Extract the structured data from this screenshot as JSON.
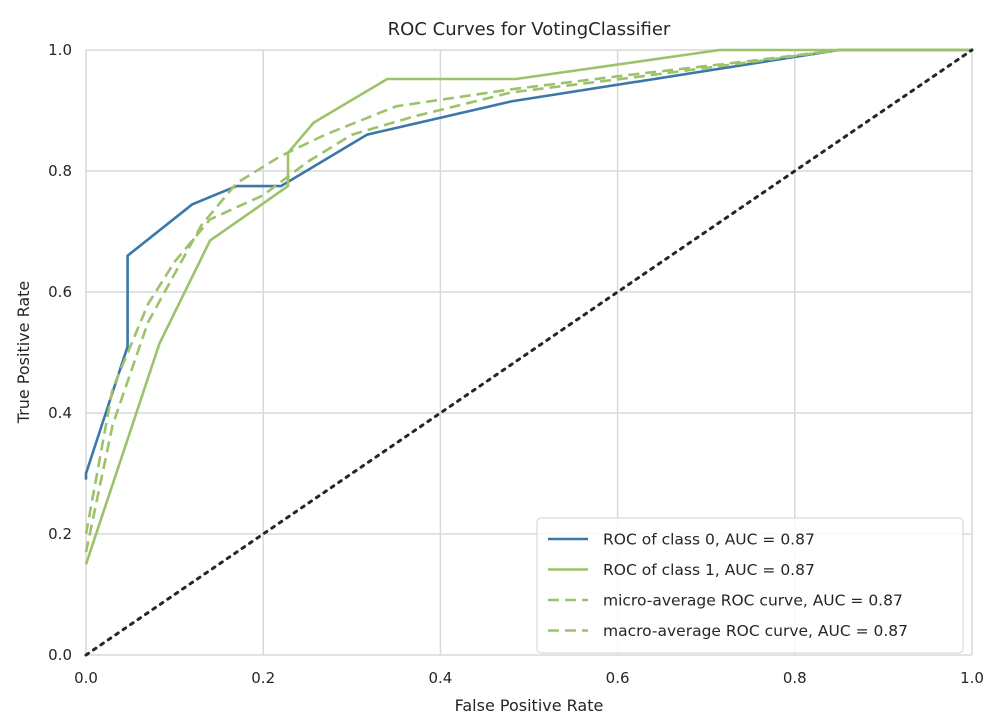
{
  "chart_data": {
    "type": "line",
    "title": "ROC Curves for VotingClassifier",
    "xlabel": "False Positive Rate",
    "ylabel": "True Positive Rate",
    "xlim": [
      0,
      1
    ],
    "ylim": [
      0,
      1
    ],
    "xticks": [
      "0.0",
      "0.2",
      "0.4",
      "0.6",
      "0.8",
      "1.0"
    ],
    "yticks": [
      "0.0",
      "0.2",
      "0.4",
      "0.6",
      "0.8",
      "1.0"
    ],
    "grid": true,
    "legend_position": "bottom-right",
    "series": [
      {
        "name": "ROC of class 0, AUC = 0.87",
        "style": "solid",
        "color": "#3a78a8",
        "x": [
          0.0,
          0.0,
          0.047,
          0.047,
          0.12,
          0.17,
          0.22,
          0.317,
          0.48,
          0.85,
          1.0
        ],
        "y": [
          0.29,
          0.3,
          0.51,
          0.66,
          0.745,
          0.775,
          0.775,
          0.86,
          0.915,
          1.0,
          1.0
        ]
      },
      {
        "name": "ROC of class 1, AUC = 0.87",
        "style": "solid",
        "color": "#9cc26a",
        "x": [
          0.0,
          0.0,
          0.083,
          0.14,
          0.228,
          0.228,
          0.257,
          0.34,
          0.485,
          0.715,
          1.0
        ],
        "y": [
          0.15,
          0.15,
          0.515,
          0.685,
          0.775,
          0.83,
          0.88,
          0.952,
          0.952,
          1.0,
          1.0
        ]
      },
      {
        "name": "micro-average ROC curve, AUC = 0.87",
        "style": "dashed",
        "color": "#9cc26a",
        "x": [
          0.0,
          0.03,
          0.07,
          0.1,
          0.13,
          0.17,
          0.22,
          0.27,
          0.35,
          0.48,
          0.62,
          0.75,
          0.85,
          1.0
        ],
        "y": [
          0.17,
          0.38,
          0.55,
          0.63,
          0.71,
          0.78,
          0.825,
          0.86,
          0.907,
          0.935,
          0.96,
          0.982,
          1.0,
          1.0
        ]
      },
      {
        "name": "macro-average ROC curve, AUC = 0.87",
        "style": "dashed",
        "color": "#9cc26a",
        "x": [
          0.0,
          0.03,
          0.07,
          0.1,
          0.14,
          0.2,
          0.25,
          0.3,
          0.37,
          0.48,
          0.62,
          0.75,
          0.85,
          1.0
        ],
        "y": [
          0.2,
          0.44,
          0.58,
          0.65,
          0.72,
          0.76,
          0.815,
          0.86,
          0.89,
          0.93,
          0.955,
          0.98,
          1.0,
          1.0
        ]
      },
      {
        "name": "",
        "style": "dotted",
        "color": "#262626",
        "x": [
          0,
          1
        ],
        "y": [
          0,
          1
        ]
      }
    ]
  }
}
